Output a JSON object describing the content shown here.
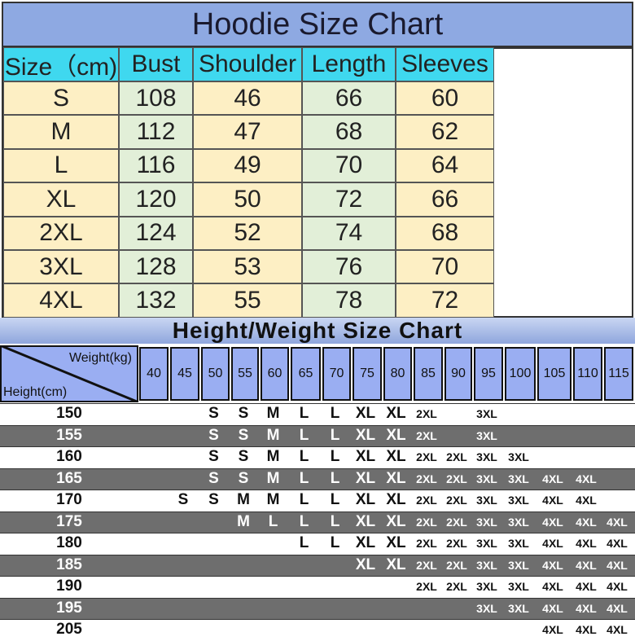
{
  "size_chart": {
    "title": "Hoodie Size Chart",
    "headers": [
      "Size（cm)",
      "Bust",
      "Shoulder",
      "Length",
      "Sleeves"
    ],
    "rows": [
      [
        "S",
        "108",
        "46",
        "66",
        "60"
      ],
      [
        "M",
        "112",
        "47",
        "68",
        "62"
      ],
      [
        "L",
        "116",
        "49",
        "70",
        "64"
      ],
      [
        "XL",
        "120",
        "50",
        "72",
        "66"
      ],
      [
        "2XL",
        "124",
        "52",
        "74",
        "68"
      ],
      [
        "3XL",
        "128",
        "53",
        "76",
        "70"
      ],
      [
        "4XL",
        "132",
        "55",
        "78",
        "72"
      ]
    ]
  },
  "height_weight_chart": {
    "title": "Height/Weight Size Chart",
    "weight_label": "Weight(kg)",
    "height_label": "Height(cm)",
    "weights": [
      "40",
      "45",
      "50",
      "55",
      "60",
      "65",
      "70",
      "75",
      "80",
      "85",
      "90",
      "95",
      "100",
      "105",
      "110",
      "115"
    ],
    "heights": [
      "150",
      "155",
      "160",
      "165",
      "170",
      "175",
      "180",
      "185",
      "190",
      "195",
      "205"
    ],
    "rows": [
      [
        null,
        null,
        "S",
        "S",
        "M",
        "L",
        "L",
        "XL",
        "XL",
        "2XL",
        null,
        "3XL",
        null,
        null,
        null,
        null
      ],
      [
        null,
        null,
        "S",
        "S",
        "M",
        "L",
        "L",
        "XL",
        "XL",
        "2XL",
        null,
        "3XL",
        null,
        null,
        null,
        null
      ],
      [
        null,
        null,
        "S",
        "S",
        "M",
        "L",
        "L",
        "XL",
        "XL",
        "2XL",
        "2XL",
        "3XL",
        "3XL",
        null,
        null,
        null
      ],
      [
        null,
        null,
        "S",
        "S",
        "M",
        "L",
        "L",
        "XL",
        "XL",
        "2XL",
        "2XL",
        "3XL",
        "3XL",
        "4XL",
        "4XL",
        null
      ],
      [
        null,
        "S",
        "S",
        "M",
        "M",
        "L",
        "L",
        "XL",
        "XL",
        "2XL",
        "2XL",
        "3XL",
        "3XL",
        "4XL",
        "4XL",
        null
      ],
      [
        null,
        null,
        null,
        "M",
        "L",
        "L",
        "L",
        "XL",
        "XL",
        "2XL",
        "2XL",
        "3XL",
        "3XL",
        "4XL",
        "4XL",
        "4XL"
      ],
      [
        null,
        null,
        null,
        null,
        null,
        "L",
        "L",
        "XL",
        "XL",
        "2XL",
        "2XL",
        "3XL",
        "3XL",
        "4XL",
        "4XL",
        "4XL"
      ],
      [
        null,
        null,
        null,
        null,
        null,
        null,
        null,
        "XL",
        "XL",
        "2XL",
        "2XL",
        "3XL",
        "3XL",
        "4XL",
        "4XL",
        "4XL"
      ],
      [
        null,
        null,
        null,
        null,
        null,
        null,
        null,
        null,
        null,
        "2XL",
        "2XL",
        "3XL",
        "3XL",
        "4XL",
        "4XL",
        "4XL"
      ],
      [
        null,
        null,
        null,
        null,
        null,
        null,
        null,
        null,
        null,
        null,
        null,
        "3XL",
        "3XL",
        "4XL",
        "4XL",
        "4XL"
      ],
      [
        null,
        null,
        null,
        null,
        null,
        null,
        null,
        null,
        null,
        null,
        null,
        null,
        null,
        "4XL",
        "4XL",
        "4XL"
      ]
    ]
  }
}
